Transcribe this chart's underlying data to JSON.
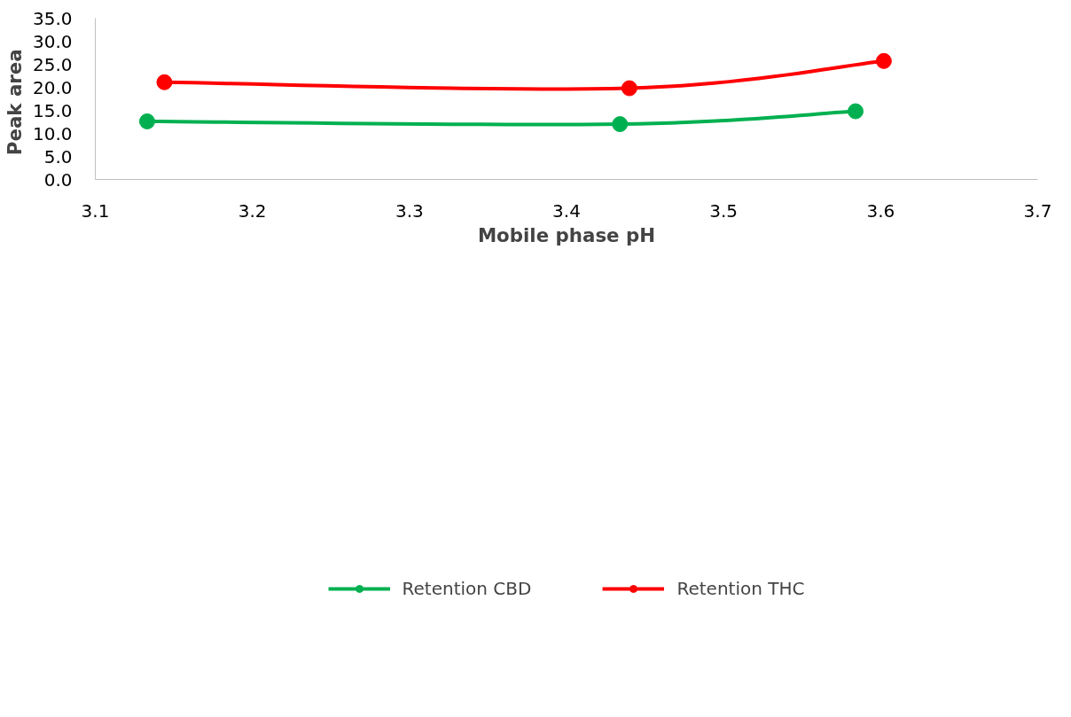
{
  "chart_data": {
    "type": "line",
    "xlabel": "Mobile phase pH",
    "ylabel": "Peak  area",
    "series": [
      {
        "name": "Retention CBD",
        "color": "#00b050",
        "x": [
          3.133,
          3.434,
          3.584
        ],
        "values": [
          12.6,
          12.0,
          14.8
        ]
      },
      {
        "name": "Retention THC",
        "color": "#ff0000",
        "x": [
          3.144,
          3.44,
          3.602
        ],
        "values": [
          21.1,
          19.8,
          25.7
        ]
      }
    ],
    "xlim": [
      3.1,
      3.7
    ],
    "xticks": [
      3.1,
      3.2,
      3.3,
      3.4,
      3.5,
      3.6,
      3.7
    ],
    "ylim": [
      0,
      35
    ],
    "yticks": [
      {
        "value": 0,
        "label": "0.0"
      },
      {
        "value": 5,
        "label": "5.0"
      },
      {
        "value": 10,
        "label": "10.0"
      },
      {
        "value": 15,
        "label": "15.0"
      },
      {
        "value": 20,
        "label": "20.0"
      },
      {
        "value": 25,
        "label": "25.0"
      },
      {
        "value": 30,
        "label": "30.0"
      },
      {
        "value": 35,
        "label": "35.0"
      }
    ],
    "grid": false,
    "legend": "bottom",
    "marker": "circle",
    "line_style": "solid"
  }
}
